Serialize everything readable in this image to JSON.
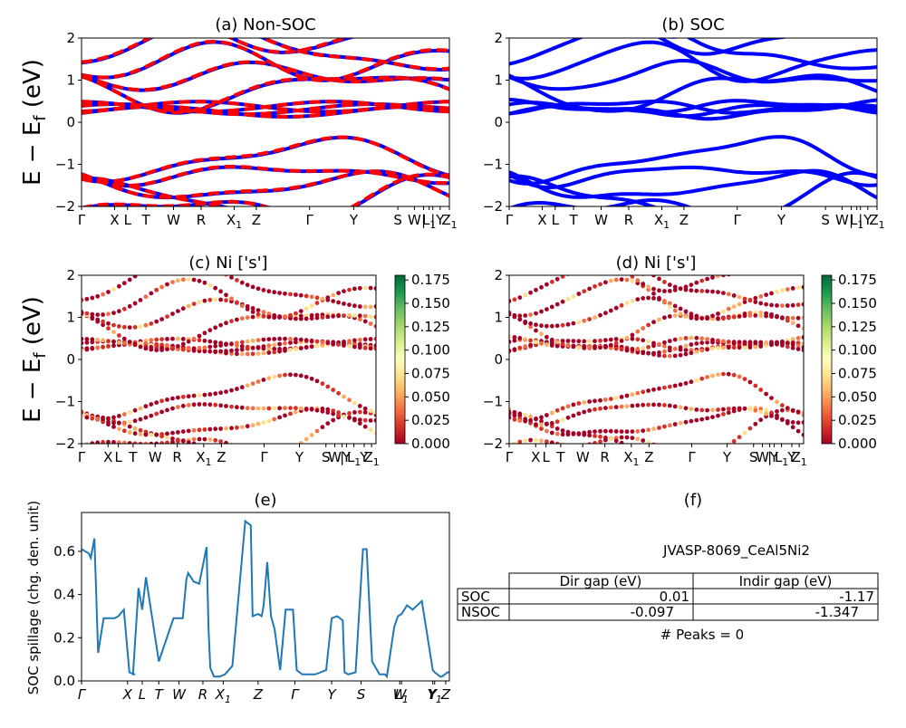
{
  "chart_data": [
    {
      "type": "line",
      "panel": "a",
      "title": "(a) Non-SOC",
      "ylabel": "E − E_f (eV)",
      "ylabel_main": "E − E",
      "ylabel_sub": "f",
      "ylabel_unit": " (eV)",
      "ylim": [
        -2,
        2
      ],
      "yticks": [
        "2",
        "1",
        "0",
        "−1",
        "−2"
      ],
      "kpoints": [
        {
          "label": "Γ",
          "pos": 0.0
        },
        {
          "label": "X",
          "pos": 0.09
        },
        {
          "label": "L",
          "pos": 0.125
        },
        {
          "label": "T",
          "pos": 0.175
        },
        {
          "label": "W",
          "pos": 0.25
        },
        {
          "label": "R",
          "pos": 0.325
        },
        {
          "label": "X",
          "sub": "1",
          "pos": 0.415
        },
        {
          "label": "Z",
          "pos": 0.475
        },
        {
          "label": "Γ",
          "pos": 0.62
        },
        {
          "label": "Y",
          "pos": 0.74
        },
        {
          "label": "S",
          "pos": 0.86
        },
        {
          "label": "W",
          "pos": 0.905
        },
        {
          "label": "|",
          "pos": 0.93
        },
        {
          "label": "L",
          "sub": "1",
          "pos": 0.945
        },
        {
          "label": "|",
          "pos": 0.955
        },
        {
          "label": "Y",
          "pos": 0.975
        },
        {
          "label": "Z",
          "sub": "1",
          "pos": 1.0
        }
      ],
      "series": [
        {
          "color": "#0000ff",
          "style": "solid"
        },
        {
          "color": "#ff0000",
          "style": "dashed"
        }
      ]
    },
    {
      "type": "line",
      "panel": "b",
      "title": "(b) SOC",
      "ylim": [
        -2,
        2
      ],
      "yticks": [
        "2",
        "1",
        "0",
        "−1",
        "−2"
      ],
      "kpoints": [
        {
          "label": "Γ",
          "pos": 0.0
        },
        {
          "label": "X",
          "pos": 0.09
        },
        {
          "label": "L",
          "pos": 0.125
        },
        {
          "label": "T",
          "pos": 0.175
        },
        {
          "label": "W",
          "pos": 0.25
        },
        {
          "label": "R",
          "pos": 0.325
        },
        {
          "label": "X",
          "sub": "1",
          "pos": 0.415
        },
        {
          "label": "Z",
          "pos": 0.475
        },
        {
          "label": "Γ",
          "pos": 0.62
        },
        {
          "label": "Y",
          "pos": 0.74
        },
        {
          "label": "S",
          "pos": 0.86
        },
        {
          "label": "W",
          "pos": 0.905
        },
        {
          "label": "|",
          "pos": 0.93
        },
        {
          "label": "L",
          "sub": "1",
          "pos": 0.945
        },
        {
          "label": "|",
          "pos": 0.955
        },
        {
          "label": "Y",
          "pos": 0.975
        },
        {
          "label": "Z",
          "sub": "1",
          "pos": 1.0
        }
      ],
      "series": [
        {
          "color": "#0000ff",
          "style": "solid"
        }
      ]
    },
    {
      "type": "scatter",
      "panel": "c",
      "title": "(c)  Ni ['s']",
      "ylabel": "E − E_f (eV)",
      "ylabel_main": "E − E",
      "ylabel_sub": "f",
      "ylabel_unit": " (eV)",
      "ylim": [
        -2,
        2
      ],
      "yticks": [
        "2",
        "1",
        "0",
        "−1",
        "−2"
      ],
      "colorbar": {
        "cmap": "RdYlGn",
        "min": 0.0,
        "max": 0.18,
        "ticks": [
          "0.175",
          "0.150",
          "0.125",
          "0.100",
          "0.075",
          "0.050",
          "0.025",
          "0.000"
        ]
      },
      "kpoints": [
        {
          "label": "Γ",
          "pos": 0.0
        },
        {
          "label": "X",
          "pos": 0.09
        },
        {
          "label": "L",
          "pos": 0.125
        },
        {
          "label": "T",
          "pos": 0.175
        },
        {
          "label": "W",
          "pos": 0.25
        },
        {
          "label": "R",
          "pos": 0.325
        },
        {
          "label": "X",
          "sub": "1",
          "pos": 0.415
        },
        {
          "label": "Z",
          "pos": 0.475
        },
        {
          "label": "Γ",
          "pos": 0.62
        },
        {
          "label": "Y",
          "pos": 0.74
        },
        {
          "label": "S",
          "pos": 0.83
        },
        {
          "label": "W",
          "pos": 0.86
        },
        {
          "label": "|",
          "pos": 0.885
        },
        {
          "label": "Y",
          "pos": 0.9
        },
        {
          "label": "L",
          "sub": "1",
          "pos": 0.925
        },
        {
          "label": "Y",
          "pos": 0.96
        },
        {
          "label": "Z",
          "sub": "1",
          "pos": 0.985
        }
      ]
    },
    {
      "type": "scatter",
      "panel": "d",
      "title": "(d) Ni ['s']",
      "ylim": [
        -2,
        2
      ],
      "yticks": [
        "2",
        "1",
        "0",
        "−1",
        "−2"
      ],
      "colorbar": {
        "cmap": "RdYlGn",
        "min": 0.0,
        "max": 0.18,
        "ticks": [
          "0.175",
          "0.150",
          "0.125",
          "0.100",
          "0.075",
          "0.050",
          "0.025",
          "0.000"
        ]
      },
      "kpoints": [
        {
          "label": "Γ",
          "pos": 0.0
        },
        {
          "label": "X",
          "pos": 0.09
        },
        {
          "label": "L",
          "pos": 0.125
        },
        {
          "label": "T",
          "pos": 0.175
        },
        {
          "label": "W",
          "pos": 0.25
        },
        {
          "label": "R",
          "pos": 0.325
        },
        {
          "label": "X",
          "sub": "1",
          "pos": 0.415
        },
        {
          "label": "Z",
          "pos": 0.475
        },
        {
          "label": "Γ",
          "pos": 0.62
        },
        {
          "label": "Y",
          "pos": 0.74
        },
        {
          "label": "S",
          "pos": 0.83
        },
        {
          "label": "W",
          "pos": 0.86
        },
        {
          "label": "|",
          "pos": 0.885
        },
        {
          "label": "Y",
          "pos": 0.9
        },
        {
          "label": "L",
          "sub": "1",
          "pos": 0.925
        },
        {
          "label": "Y",
          "pos": 0.96
        },
        {
          "label": "Z",
          "sub": "1",
          "pos": 0.985
        }
      ]
    },
    {
      "type": "line",
      "panel": "e",
      "title": "(e)",
      "ylabel": "SOC spillage (chg. den. unit)",
      "ylim": [
        0,
        0.78
      ],
      "yticks": [
        "0.0",
        "0.2",
        "0.4",
        "0.6"
      ],
      "yticks_values": [
        0.0,
        0.2,
        0.4,
        0.6
      ],
      "series": [
        {
          "color": "#1f77b4",
          "style": "solid"
        }
      ],
      "x": [
        0,
        0.02,
        0.025,
        0.035,
        0.045,
        0.06,
        0.09,
        0.1,
        0.115,
        0.13,
        0.145,
        0.14,
        0.155,
        0.165,
        0.175,
        0.21,
        0.25,
        0.27,
        0.275,
        0.285,
        0.29,
        0.305,
        0.32,
        0.34,
        0.345,
        0.35,
        0.36,
        0.375,
        0.39,
        0.41,
        0.445,
        0.46,
        0.465,
        0.48,
        0.49,
        0.495,
        0.505,
        0.515,
        0.525,
        0.54,
        0.555,
        0.575,
        0.585,
        0.6,
        0.635,
        0.65,
        0.665,
        0.68,
        0.695,
        0.71,
        0.715,
        0.725,
        0.745,
        0.765,
        0.775,
        0.79,
        0.81,
        0.825,
        0.83,
        0.85,
        0.86,
        0.87,
        0.885,
        0.9,
        0.925,
        0.955,
        0.96,
        0.975,
        0.98,
        0.995,
        1.0
      ],
      "values": [
        0.61,
        0.59,
        0.57,
        0.66,
        0.13,
        0.29,
        0.29,
        0.3,
        0.33,
        0.04,
        0.03,
        0.03,
        0.43,
        0.33,
        0.48,
        0.09,
        0.29,
        0.29,
        0.29,
        0.47,
        0.5,
        0.46,
        0.45,
        0.62,
        0.25,
        0.06,
        0.02,
        0.02,
        0.03,
        0.07,
        0.74,
        0.72,
        0.3,
        0.31,
        0.3,
        0.35,
        0.55,
        0.3,
        0.24,
        0.05,
        0.33,
        0.33,
        0.05,
        0.03,
        0.03,
        0.04,
        0.05,
        0.29,
        0.3,
        0.28,
        0.04,
        0.03,
        0.04,
        0.61,
        0.61,
        0.09,
        0.03,
        0.03,
        0.02,
        0.25,
        0.3,
        0.31,
        0.35,
        0.33,
        0.37,
        0.05,
        0.04,
        0.02,
        0.02,
        0.04,
        0.04
      ],
      "kpoints": [
        {
          "label": "Γ",
          "pos": 0.0
        },
        {
          "label": "X",
          "pos": 0.125
        },
        {
          "label": "L",
          "pos": 0.165
        },
        {
          "label": "T",
          "pos": 0.21
        },
        {
          "label": "W",
          "pos": 0.265
        },
        {
          "label": "R",
          "pos": 0.33
        },
        {
          "label": "X",
          "sub": "1",
          "pos": 0.385
        },
        {
          "label": "Z",
          "pos": 0.48
        },
        {
          "label": "Γ",
          "pos": 0.58
        },
        {
          "label": "Y",
          "pos": 0.68
        },
        {
          "label": "S",
          "pos": 0.76
        },
        {
          "label": "W",
          "pos": 0.865
        },
        {
          "label": "L",
          "sub": "1",
          "pos": 0.87
        },
        {
          "label": "Y",
          "pos": 0.955
        },
        {
          "label": "Y",
          "sub": "1",
          "pos": 0.96
        },
        {
          "label": "Z",
          "pos": 0.99
        }
      ]
    },
    {
      "type": "table",
      "panel": "f",
      "title": "(f)",
      "name": "JVASP-8069_CeAl5Ni2",
      "columns": [
        "Dir gap (eV)",
        "Indir gap (eV)"
      ],
      "rows": [
        {
          "label": "SOC",
          "values": [
            "0.01",
            "-1.17"
          ]
        },
        {
          "label": "NSOC",
          "values": [
            "-0.097",
            "-1.347"
          ]
        }
      ],
      "footer": "# Peaks = 0"
    }
  ]
}
